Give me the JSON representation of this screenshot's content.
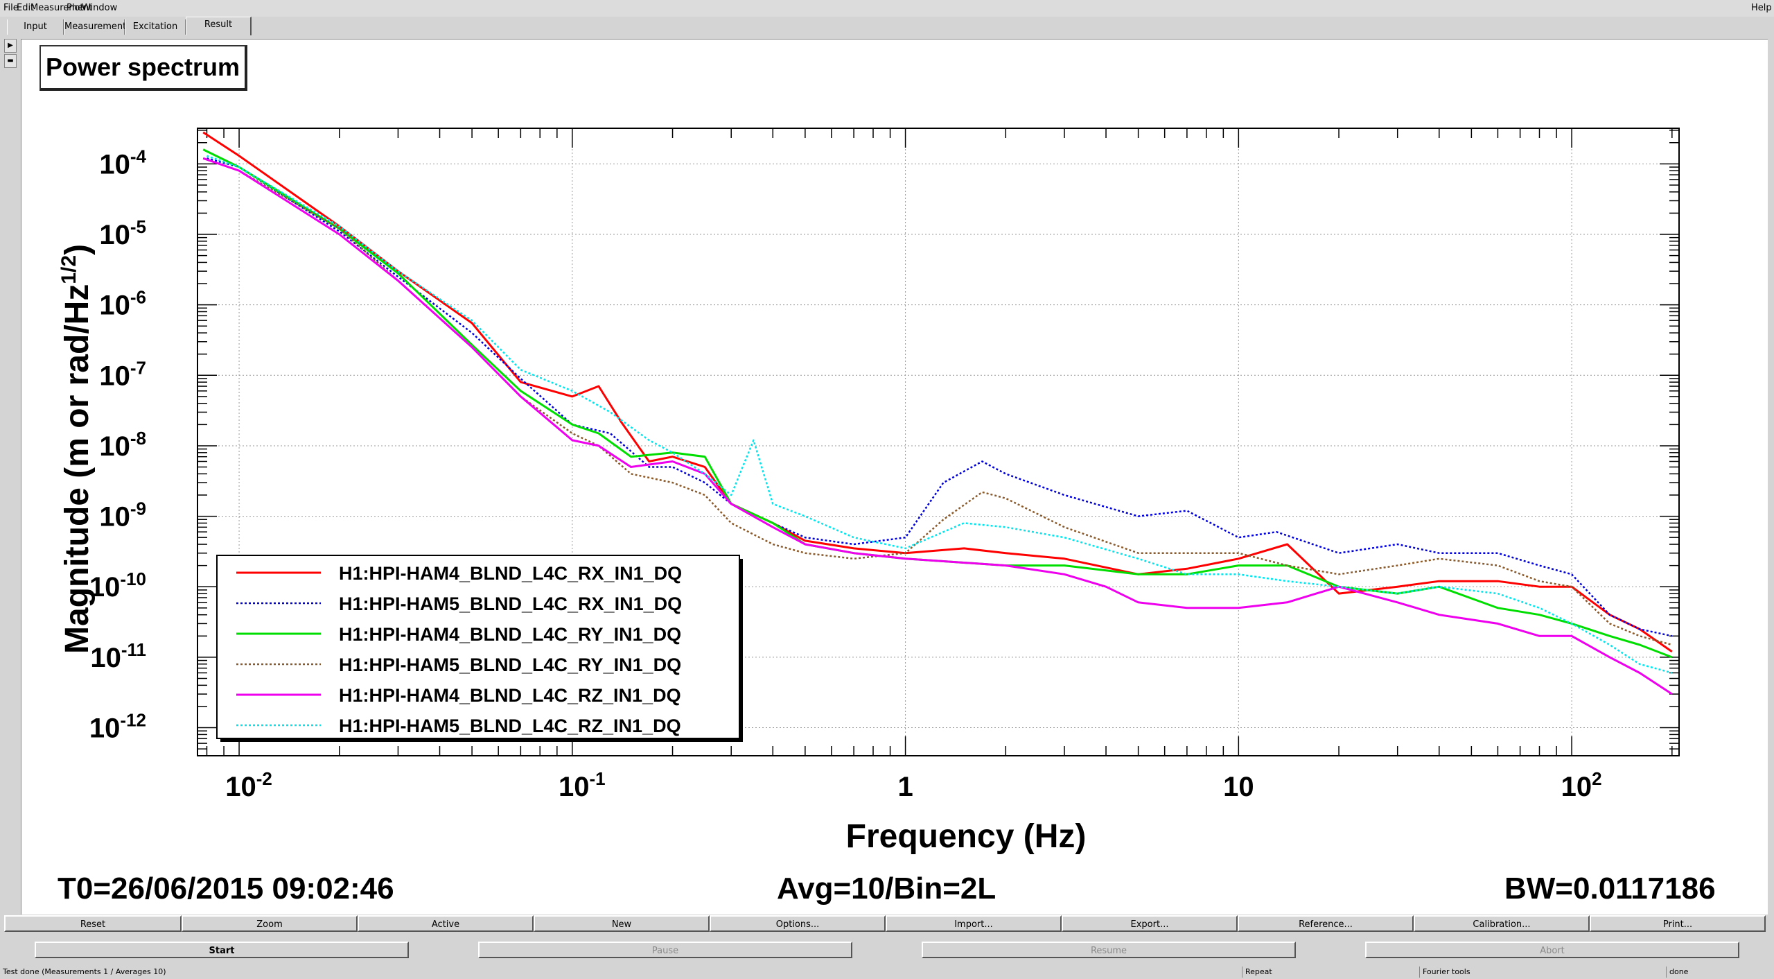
{
  "menubar": {
    "items": [
      "File",
      "Edit",
      "Measurement",
      "Plot",
      "Window"
    ],
    "help": "Help"
  },
  "tabs": [
    "Input",
    "Measurement",
    "Excitation",
    "Result"
  ],
  "active_tab": "Result",
  "plot": {
    "title": "Power spectrum",
    "t0": "T0=26/06/2015 09:02:46",
    "avg": "Avg=10/Bin=2L",
    "bw": "BW=0.0117186"
  },
  "chart_data": {
    "type": "line",
    "title": "Power spectrum",
    "xlabel": "Frequency (Hz)",
    "ylabel": "Magnitude (m or rad/Hz^1/2)",
    "ylabel_main": "Magnitude (m or rad/Hz",
    "ylabel_sup": "1/2",
    "ylabel_close": ")",
    "xscale": "log",
    "yscale": "log",
    "xlim": [
      0.0075,
      210
    ],
    "ylim": [
      4e-13,
      0.00032
    ],
    "grid": true,
    "legend_position": "bottom-left",
    "xticks": [
      {
        "value": 0.01,
        "base": "10",
        "exp": "-2"
      },
      {
        "value": 0.1,
        "base": "10",
        "exp": "-1"
      },
      {
        "value": 1,
        "base": "1",
        "exp": ""
      },
      {
        "value": 10,
        "base": "10",
        "exp": ""
      },
      {
        "value": 100,
        "base": "10",
        "exp": "2"
      }
    ],
    "yticks": [
      {
        "value": 0.0001,
        "base": "10",
        "exp": "-4"
      },
      {
        "value": 1e-05,
        "base": "10",
        "exp": "-5"
      },
      {
        "value": 1e-06,
        "base": "10",
        "exp": "-6"
      },
      {
        "value": 1e-07,
        "base": "10",
        "exp": "-7"
      },
      {
        "value": 1e-08,
        "base": "10",
        "exp": "-8"
      },
      {
        "value": 1e-09,
        "base": "10",
        "exp": "-9"
      },
      {
        "value": 1e-10,
        "base": "10",
        "exp": "-10"
      },
      {
        "value": 1e-11,
        "base": "10",
        "exp": "-11"
      },
      {
        "value": 1e-12,
        "base": "10",
        "exp": "-12"
      }
    ],
    "series": [
      {
        "name": "H1:HPI-HAM4_BLND_L4C_RX_IN1_DQ",
        "color": "#ff0000",
        "dash": "solid",
        "x": [
          0.0078,
          0.01,
          0.02,
          0.03,
          0.05,
          0.07,
          0.1,
          0.12,
          0.14,
          0.17,
          0.2,
          0.25,
          0.3,
          0.4,
          0.5,
          0.7,
          1,
          1.5,
          2,
          3,
          5,
          7,
          10,
          14,
          20,
          30,
          40,
          60,
          80,
          100,
          130,
          160,
          200
        ],
        "y": [
          0.00028,
          0.00013,
          1.3e-05,
          3e-06,
          5.5e-07,
          8e-08,
          5e-08,
          7e-08,
          2.2e-08,
          6e-09,
          7e-09,
          5e-09,
          1.5e-09,
          8e-10,
          4.5e-10,
          3.5e-10,
          3e-10,
          3.5e-10,
          3e-10,
          2.5e-10,
          1.5e-10,
          1.8e-10,
          2.5e-10,
          4e-10,
          8e-11,
          1e-10,
          1.2e-10,
          1.2e-10,
          1e-10,
          1e-10,
          4e-11,
          2.5e-11,
          1.2e-11
        ]
      },
      {
        "name": "H1:HPI-HAM5_BLND_L4C_RX_IN1_DQ",
        "color": "#0000d8",
        "dash": "dotted",
        "x": [
          0.008,
          0.01,
          0.02,
          0.03,
          0.05,
          0.07,
          0.1,
          0.13,
          0.17,
          0.2,
          0.25,
          0.3,
          0.4,
          0.5,
          0.7,
          1,
          1.3,
          1.7,
          2,
          3,
          5,
          7,
          10,
          13,
          20,
          30,
          40,
          60,
          80,
          100,
          130,
          160,
          200
        ],
        "y": [
          0.00012,
          9e-05,
          1.1e-05,
          2.5e-06,
          4e-07,
          9e-08,
          2e-08,
          1.5e-08,
          5e-09,
          5e-09,
          3e-09,
          1.5e-09,
          8e-10,
          5e-10,
          4e-10,
          5e-10,
          3e-09,
          6e-09,
          4e-09,
          2e-09,
          1e-09,
          1.2e-09,
          5e-10,
          6e-10,
          3e-10,
          4e-10,
          3e-10,
          3e-10,
          2e-10,
          1.5e-10,
          4e-11,
          2.5e-11,
          2e-11
        ]
      },
      {
        "name": "H1:HPI-HAM4_BLND_L4C_RY_IN1_DQ",
        "color": "#00dd00",
        "dash": "solid",
        "x": [
          0.0078,
          0.01,
          0.02,
          0.03,
          0.05,
          0.07,
          0.1,
          0.12,
          0.15,
          0.2,
          0.25,
          0.3,
          0.4,
          0.5,
          0.7,
          1,
          2,
          3,
          5,
          7,
          10,
          14,
          20,
          30,
          40,
          60,
          80,
          100,
          130,
          160,
          200
        ],
        "y": [
          0.00016,
          9e-05,
          1.2e-05,
          2.8e-06,
          2.7e-07,
          6e-08,
          2e-08,
          1.5e-08,
          7e-09,
          8e-09,
          7e-09,
          1.5e-09,
          8e-10,
          4e-10,
          3e-10,
          2.5e-10,
          2e-10,
          2e-10,
          1.5e-10,
          1.5e-10,
          2e-10,
          2e-10,
          1e-10,
          8e-11,
          1e-10,
          5e-11,
          4e-11,
          3e-11,
          2e-11,
          1.5e-11,
          1e-11
        ]
      },
      {
        "name": "H1:HPI-HAM5_BLND_L4C_RY_IN1_DQ",
        "color": "#8b5a2b",
        "dash": "dotted",
        "x": [
          0.0078,
          0.01,
          0.02,
          0.03,
          0.05,
          0.07,
          0.1,
          0.12,
          0.15,
          0.2,
          0.25,
          0.3,
          0.4,
          0.5,
          0.7,
          1,
          1.3,
          1.7,
          2,
          3,
          5,
          7,
          10,
          14,
          20,
          30,
          40,
          60,
          80,
          100,
          130,
          160,
          200
        ],
        "y": [
          0.00012,
          8e-05,
          1.2e-05,
          2.2e-06,
          2.5e-07,
          5e-08,
          1.5e-08,
          1e-08,
          4e-09,
          3e-09,
          2e-09,
          8e-10,
          4e-10,
          3e-10,
          2.5e-10,
          3e-10,
          9e-10,
          2.2e-09,
          1.8e-09,
          7e-10,
          3e-10,
          3e-10,
          3e-10,
          2e-10,
          1.5e-10,
          2e-10,
          2.5e-10,
          2e-10,
          1.2e-10,
          1e-10,
          3e-11,
          2e-11,
          1.5e-11
        ]
      },
      {
        "name": "H1:HPI-HAM4_BLND_L4C_RZ_IN1_DQ",
        "color": "#ee00ee",
        "dash": "solid",
        "x": [
          0.0078,
          0.01,
          0.02,
          0.03,
          0.05,
          0.07,
          0.1,
          0.12,
          0.15,
          0.2,
          0.25,
          0.3,
          0.4,
          0.5,
          0.7,
          1,
          2,
          3,
          4,
          5,
          7,
          10,
          14,
          20,
          30,
          40,
          60,
          80,
          100,
          130,
          160,
          200
        ],
        "y": [
          0.00012,
          8e-05,
          1e-05,
          2.2e-06,
          2.5e-07,
          5e-08,
          1.2e-08,
          1e-08,
          5e-09,
          6e-09,
          4e-09,
          1.5e-09,
          7e-10,
          4e-10,
          3e-10,
          2.5e-10,
          2e-10,
          1.5e-10,
          1e-10,
          6e-11,
          5e-11,
          5e-11,
          6e-11,
          1e-10,
          6e-11,
          4e-11,
          3e-11,
          2e-11,
          2e-11,
          1e-11,
          6e-12,
          3e-12
        ]
      },
      {
        "name": "H1:HPI-HAM5_BLND_L4C_RZ_IN1_DQ",
        "color": "#00e5ee",
        "dash": "dotted",
        "x": [
          0.008,
          0.01,
          0.02,
          0.03,
          0.05,
          0.07,
          0.1,
          0.13,
          0.17,
          0.2,
          0.25,
          0.3,
          0.35,
          0.4,
          0.5,
          0.7,
          1,
          1.5,
          2,
          3,
          5,
          7,
          10,
          14,
          20,
          30,
          40,
          60,
          80,
          100,
          130,
          160,
          200
        ],
        "y": [
          0.00013,
          9e-05,
          1.3e-05,
          3e-06,
          6e-07,
          1.2e-07,
          6e-08,
          3e-08,
          1.2e-08,
          8e-09,
          4e-09,
          2e-09,
          1.2e-08,
          1.5e-09,
          1e-09,
          5e-10,
          3.5e-10,
          8e-10,
          7e-10,
          5e-10,
          2.5e-10,
          1.5e-10,
          1.5e-10,
          1.2e-10,
          1e-10,
          8e-11,
          1e-10,
          8e-11,
          5e-11,
          3e-11,
          1.5e-11,
          8e-12,
          6e-12
        ]
      }
    ]
  },
  "toolbar": {
    "row1": [
      "Reset",
      "Zoom",
      "Active",
      "New",
      "Options...",
      "Import...",
      "Export...",
      "Reference...",
      "Calibration...",
      "Print..."
    ],
    "row2": [
      "Start",
      "Pause",
      "Resume",
      "Abort"
    ]
  },
  "status": {
    "message": "Test done (Measurements 1 / Averages 10)",
    "repeat": "Repeat",
    "fourier": "Fourier tools",
    "state": "done"
  }
}
